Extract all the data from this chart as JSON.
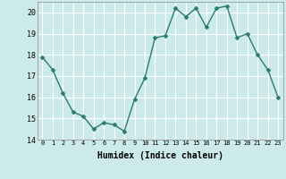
{
  "x": [
    0,
    1,
    2,
    3,
    4,
    5,
    6,
    7,
    8,
    9,
    10,
    11,
    12,
    13,
    14,
    15,
    16,
    17,
    18,
    19,
    20,
    21,
    22,
    23
  ],
  "y": [
    17.9,
    17.3,
    16.2,
    15.3,
    15.1,
    14.5,
    14.8,
    14.7,
    14.4,
    15.9,
    16.9,
    18.8,
    18.9,
    20.2,
    19.8,
    20.2,
    19.3,
    20.2,
    20.3,
    18.8,
    19.0,
    18.0,
    17.3,
    16.0
  ],
  "xlabel": "Humidex (Indice chaleur)",
  "line_color": "#2d7a6e",
  "marker": "D",
  "marker_size": 2.5,
  "line_width": 1.0,
  "bg_color": "#cceaea",
  "grid_color": "#ffffff",
  "xlim": [
    -0.5,
    23.5
  ],
  "ylim": [
    14,
    20.5
  ],
  "yticks": [
    14,
    15,
    16,
    17,
    18,
    19,
    20
  ],
  "xticks": [
    0,
    1,
    2,
    3,
    4,
    5,
    6,
    7,
    8,
    9,
    10,
    11,
    12,
    13,
    14,
    15,
    16,
    17,
    18,
    19,
    20,
    21,
    22,
    23
  ]
}
